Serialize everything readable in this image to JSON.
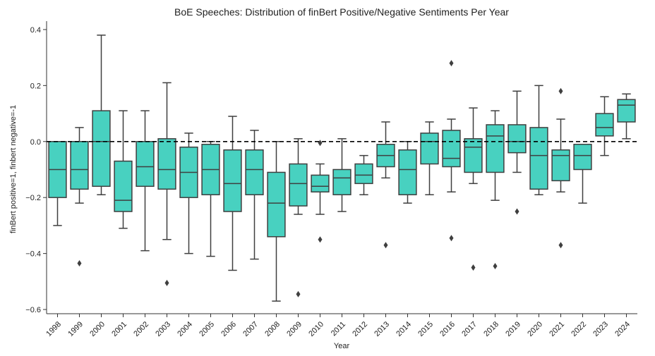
{
  "chart_data": {
    "type": "box",
    "title": "BoE Speeches: Distribution of finBert Positive/Negative Sentiments Per Year",
    "xlabel": "Year",
    "ylabel": "finBert positive=1, finbert negative=-1",
    "ylim": [
      -0.615,
      0.43
    ],
    "yticks": [
      0.4,
      0.2,
      0.0,
      -0.2,
      -0.4,
      -0.6
    ],
    "ytick_labels": [
      "0.4",
      "0.2",
      "0.0",
      "−0.2",
      "−0.4",
      "−0.6"
    ],
    "reference_line": 0.0,
    "box_color": "#48d1c0",
    "edge_color": "#3f3f3f",
    "grid": false,
    "categories": [
      "1998",
      "1999",
      "2000",
      "2001",
      "2002",
      "2003",
      "2004",
      "2005",
      "2006",
      "2007",
      "2008",
      "2009",
      "2010",
      "2011",
      "2012",
      "2013",
      "2014",
      "2015",
      "2016",
      "2017",
      "2018",
      "2019",
      "2020",
      "2021",
      "2022",
      "2023",
      "2024"
    ],
    "boxes": [
      {
        "year": "1998",
        "whisker_low": -0.3,
        "q1": -0.2,
        "median": -0.1,
        "q3": 0.0,
        "whisker_high": 0.0,
        "outliers": []
      },
      {
        "year": "1999",
        "whisker_low": -0.22,
        "q1": -0.17,
        "median": -0.1,
        "q3": 0.0,
        "whisker_high": 0.05,
        "outliers": [
          -0.435
        ]
      },
      {
        "year": "2000",
        "whisker_low": -0.19,
        "q1": -0.16,
        "median": 0.0,
        "q3": 0.11,
        "whisker_high": 0.38,
        "outliers": []
      },
      {
        "year": "2001",
        "whisker_low": -0.31,
        "q1": -0.25,
        "median": -0.21,
        "q3": -0.07,
        "whisker_high": 0.11,
        "outliers": []
      },
      {
        "year": "2002",
        "whisker_low": -0.39,
        "q1": -0.16,
        "median": -0.09,
        "q3": 0.0,
        "whisker_high": 0.11,
        "outliers": []
      },
      {
        "year": "2003",
        "whisker_low": -0.35,
        "q1": -0.17,
        "median": -0.1,
        "q3": 0.01,
        "whisker_high": 0.21,
        "outliers": [
          -0.505
        ]
      },
      {
        "year": "2004",
        "whisker_low": -0.4,
        "q1": -0.2,
        "median": -0.11,
        "q3": -0.02,
        "whisker_high": 0.03,
        "outliers": []
      },
      {
        "year": "2005",
        "whisker_low": -0.41,
        "q1": -0.19,
        "median": -0.1,
        "q3": -0.01,
        "whisker_high": 0.0,
        "outliers": []
      },
      {
        "year": "2006",
        "whisker_low": -0.46,
        "q1": -0.25,
        "median": -0.15,
        "q3": -0.03,
        "whisker_high": 0.09,
        "outliers": []
      },
      {
        "year": "2007",
        "whisker_low": -0.42,
        "q1": -0.19,
        "median": -0.1,
        "q3": -0.03,
        "whisker_high": 0.04,
        "outliers": []
      },
      {
        "year": "2008",
        "whisker_low": -0.57,
        "q1": -0.34,
        "median": -0.22,
        "q3": -0.11,
        "whisker_high": 0.0,
        "outliers": []
      },
      {
        "year": "2009",
        "whisker_low": -0.26,
        "q1": -0.23,
        "median": -0.15,
        "q3": -0.08,
        "whisker_high": 0.01,
        "outliers": [
          -0.545
        ]
      },
      {
        "year": "2010",
        "whisker_low": -0.26,
        "q1": -0.18,
        "median": -0.16,
        "q3": -0.12,
        "whisker_high": -0.08,
        "outliers": [
          -0.005,
          -0.35
        ]
      },
      {
        "year": "2011",
        "whisker_low": -0.25,
        "q1": -0.19,
        "median": -0.13,
        "q3": -0.1,
        "whisker_high": 0.01,
        "outliers": []
      },
      {
        "year": "2012",
        "whisker_low": -0.19,
        "q1": -0.15,
        "median": -0.12,
        "q3": -0.08,
        "whisker_high": -0.05,
        "outliers": []
      },
      {
        "year": "2013",
        "whisker_low": -0.13,
        "q1": -0.09,
        "median": -0.05,
        "q3": -0.01,
        "whisker_high": 0.07,
        "outliers": [
          -0.37
        ]
      },
      {
        "year": "2014",
        "whisker_low": -0.22,
        "q1": -0.19,
        "median": -0.1,
        "q3": -0.03,
        "whisker_high": 0.0,
        "outliers": []
      },
      {
        "year": "2015",
        "whisker_low": -0.19,
        "q1": -0.08,
        "median": 0.0,
        "q3": 0.03,
        "whisker_high": 0.07,
        "outliers": []
      },
      {
        "year": "2016",
        "whisker_low": -0.18,
        "q1": -0.09,
        "median": -0.06,
        "q3": 0.04,
        "whisker_high": 0.08,
        "outliers": [
          0.28,
          -0.345
        ]
      },
      {
        "year": "2017",
        "whisker_low": -0.15,
        "q1": -0.11,
        "median": -0.02,
        "q3": 0.01,
        "whisker_high": 0.12,
        "outliers": [
          -0.45
        ]
      },
      {
        "year": "2018",
        "whisker_low": -0.21,
        "q1": -0.11,
        "median": 0.02,
        "q3": 0.06,
        "whisker_high": 0.11,
        "outliers": [
          -0.445
        ]
      },
      {
        "year": "2019",
        "whisker_low": -0.11,
        "q1": -0.04,
        "median": 0.0,
        "q3": 0.06,
        "whisker_high": 0.18,
        "outliers": [
          -0.25
        ]
      },
      {
        "year": "2020",
        "whisker_low": -0.19,
        "q1": -0.17,
        "median": -0.05,
        "q3": 0.05,
        "whisker_high": 0.2,
        "outliers": []
      },
      {
        "year": "2021",
        "whisker_low": -0.18,
        "q1": -0.14,
        "median": -0.05,
        "q3": -0.03,
        "whisker_high": 0.08,
        "outliers": [
          0.18,
          -0.37
        ]
      },
      {
        "year": "2022",
        "whisker_low": -0.22,
        "q1": -0.1,
        "median": -0.05,
        "q3": -0.01,
        "whisker_high": -0.01,
        "outliers": []
      },
      {
        "year": "2023",
        "whisker_low": -0.05,
        "q1": 0.02,
        "median": 0.05,
        "q3": 0.1,
        "whisker_high": 0.16,
        "outliers": []
      },
      {
        "year": "2024",
        "whisker_low": 0.01,
        "q1": 0.07,
        "median": 0.13,
        "q3": 0.15,
        "whisker_high": 0.17,
        "outliers": []
      }
    ]
  }
}
